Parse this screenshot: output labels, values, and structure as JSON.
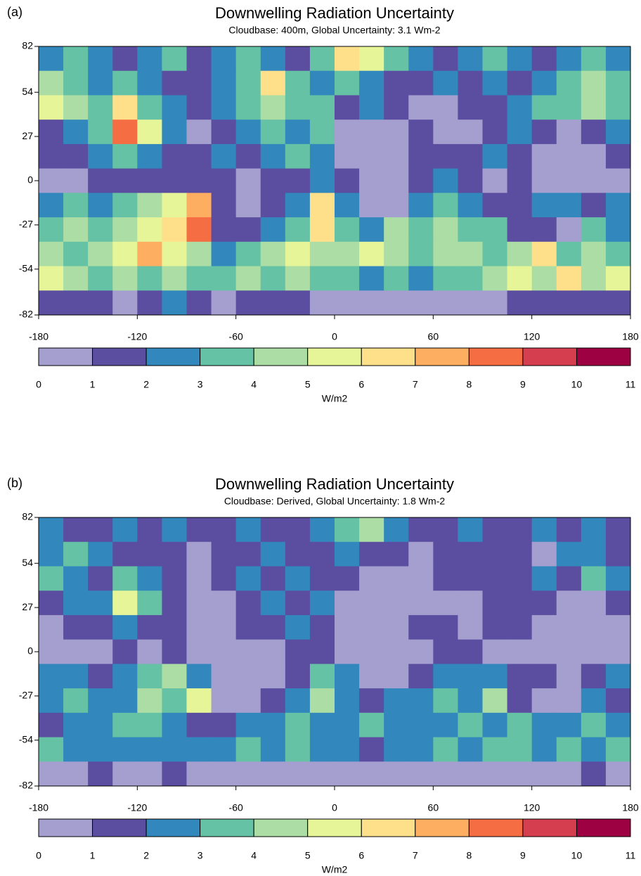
{
  "chart_data": [
    {
      "type": "heatmap",
      "panel_label": "(a)",
      "title": "Downwelling Radiation Uncertainty",
      "subtitle": "Cloudbase: 400m, Global Uncertainty: 3.1 Wm-2",
      "xlim": [
        -180,
        180
      ],
      "xticks": [
        -180,
        -120,
        -60,
        0,
        60,
        120,
        180
      ],
      "ylim": [
        -82,
        82
      ],
      "yticks": [
        82,
        54,
        27,
        0,
        -27,
        -54,
        -82
      ],
      "values": [
        [
          2.5,
          3.5,
          2.5,
          1.5,
          2.5,
          3.5,
          1.5,
          2.5,
          3.5,
          2.5,
          1.5,
          3.5,
          6.5,
          5.5,
          3.5,
          2.5,
          1.5,
          2.5,
          3.5,
          2.5,
          1.5,
          2.5,
          3.5,
          2.5
        ],
        [
          4.5,
          3.5,
          2.5,
          3.5,
          2.5,
          1.5,
          1.5,
          2.5,
          3.5,
          6.5,
          3.5,
          2.5,
          3.5,
          2.5,
          1.5,
          1.5,
          2.5,
          1.5,
          2.5,
          1.5,
          2.5,
          3.5,
          4.5,
          3.5
        ],
        [
          5.5,
          4.5,
          3.5,
          6.5,
          3.5,
          2.5,
          1.5,
          2.5,
          3.5,
          4.5,
          3.5,
          3.5,
          1.5,
          2.5,
          1.5,
          0.5,
          0.5,
          1.5,
          1.5,
          2.5,
          3.5,
          3.5,
          4.5,
          3.5
        ],
        [
          1.5,
          2.5,
          3.5,
          8.5,
          5.5,
          2.5,
          0.5,
          1.5,
          2.5,
          3.5,
          2.5,
          3.5,
          0.5,
          0.5,
          0.5,
          1.5,
          0.5,
          0.5,
          1.5,
          2.5,
          1.5,
          0.5,
          1.5,
          2.5
        ],
        [
          1.5,
          1.5,
          2.5,
          3.5,
          2.5,
          1.5,
          1.5,
          2.5,
          1.5,
          2.5,
          3.5,
          2.5,
          0.5,
          0.5,
          0.5,
          1.5,
          1.5,
          1.5,
          2.5,
          1.5,
          0.5,
          0.5,
          0.5,
          1.5
        ],
        [
          0.5,
          0.5,
          1.5,
          1.5,
          1.5,
          1.5,
          1.5,
          1.5,
          0.5,
          1.5,
          1.5,
          2.5,
          1.5,
          0.5,
          0.5,
          1.5,
          2.5,
          1.5,
          0.5,
          1.5,
          0.5,
          0.5,
          0.5,
          0.5
        ],
        [
          2.5,
          3.5,
          2.5,
          3.5,
          4.5,
          5.5,
          7.5,
          1.5,
          0.5,
          1.5,
          2.5,
          6.5,
          2.5,
          0.5,
          0.5,
          2.5,
          3.5,
          2.5,
          1.5,
          1.5,
          2.5,
          2.5,
          1.5,
          2.5
        ],
        [
          3.5,
          4.5,
          3.5,
          4.5,
          5.5,
          6.5,
          8.5,
          1.5,
          1.5,
          2.5,
          3.5,
          6.5,
          3.5,
          2.5,
          4.5,
          3.5,
          4.5,
          3.5,
          3.5,
          1.5,
          1.5,
          0.5,
          3.5,
          2.5
        ],
        [
          4.5,
          3.5,
          4.5,
          5.5,
          7.5,
          5.5,
          4.5,
          2.5,
          3.5,
          4.5,
          5.5,
          4.5,
          4.5,
          5.5,
          4.5,
          3.5,
          4.5,
          4.5,
          3.5,
          4.5,
          6.5,
          3.5,
          4.5,
          3.5
        ],
        [
          5.5,
          4.5,
          3.5,
          4.5,
          3.5,
          4.5,
          3.5,
          3.5,
          4.5,
          3.5,
          4.5,
          3.5,
          3.5,
          2.5,
          3.5,
          2.5,
          3.5,
          3.5,
          4.5,
          5.5,
          4.5,
          6.5,
          4.5,
          5.5
        ],
        [
          1.5,
          1.5,
          1.5,
          0.5,
          1.5,
          2.5,
          1.5,
          0.5,
          1.5,
          1.5,
          1.5,
          0.5,
          0.5,
          0.5,
          0.5,
          0.5,
          0.5,
          0.5,
          0.5,
          1.5,
          1.5,
          1.5,
          1.5,
          1.5
        ]
      ],
      "colorbar": {
        "levels": [
          0,
          1,
          2,
          3,
          4,
          5,
          6,
          7,
          8,
          9,
          10,
          11
        ],
        "colors": [
          "#a59fcf",
          "#5b4ea0",
          "#3288bd",
          "#66c2a5",
          "#abdda4",
          "#e6f598",
          "#fee08b",
          "#fdae61",
          "#f46d43",
          "#d53e4f",
          "#9e0142"
        ],
        "label": "W/m2"
      }
    },
    {
      "type": "heatmap",
      "panel_label": "(b)",
      "title": "Downwelling Radiation Uncertainty",
      "subtitle": "Cloudbase: Derived, Global Uncertainty: 1.8 Wm-2",
      "xlim": [
        -180,
        180
      ],
      "xticks": [
        -180,
        -120,
        -60,
        0,
        60,
        120,
        180
      ],
      "ylim": [
        -82,
        82
      ],
      "yticks": [
        82,
        54,
        27,
        0,
        -27,
        -54,
        -82
      ],
      "values": [
        [
          2.5,
          1.5,
          1.5,
          2.5,
          1.5,
          2.5,
          1.5,
          1.5,
          2.5,
          1.5,
          1.5,
          2.5,
          3.5,
          4.5,
          2.5,
          1.5,
          1.5,
          2.5,
          1.5,
          1.5,
          2.5,
          1.5,
          2.5,
          1.5
        ],
        [
          2.5,
          3.5,
          2.5,
          1.5,
          1.5,
          1.5,
          0.5,
          1.5,
          1.5,
          2.5,
          1.5,
          1.5,
          2.5,
          1.5,
          1.5,
          0.5,
          1.5,
          1.5,
          1.5,
          1.5,
          0.5,
          2.5,
          2.5,
          1.5
        ],
        [
          3.5,
          2.5,
          1.5,
          3.5,
          2.5,
          1.5,
          0.5,
          1.5,
          2.5,
          1.5,
          2.5,
          1.5,
          1.5,
          0.5,
          0.5,
          0.5,
          1.5,
          1.5,
          1.5,
          1.5,
          2.5,
          1.5,
          3.5,
          2.5
        ],
        [
          1.5,
          2.5,
          2.5,
          5.5,
          3.5,
          1.5,
          0.5,
          0.5,
          1.5,
          2.5,
          1.5,
          2.5,
          0.5,
          0.5,
          0.5,
          0.5,
          0.5,
          0.5,
          1.5,
          1.5,
          1.5,
          0.5,
          0.5,
          1.5
        ],
        [
          0.5,
          1.5,
          1.5,
          2.5,
          1.5,
          1.5,
          0.5,
          0.5,
          1.5,
          1.5,
          2.5,
          1.5,
          0.5,
          0.5,
          0.5,
          1.5,
          1.5,
          0.5,
          1.5,
          1.5,
          0.5,
          0.5,
          0.5,
          0.5
        ],
        [
          0.5,
          0.5,
          0.5,
          1.5,
          0.5,
          1.5,
          0.5,
          0.5,
          0.5,
          0.5,
          1.5,
          1.5,
          0.5,
          0.5,
          0.5,
          0.5,
          1.5,
          1.5,
          0.5,
          0.5,
          0.5,
          0.5,
          0.5,
          0.5
        ],
        [
          2.5,
          2.5,
          1.5,
          2.5,
          3.5,
          4.5,
          2.5,
          0.5,
          0.5,
          0.5,
          1.5,
          3.5,
          2.5,
          0.5,
          0.5,
          1.5,
          2.5,
          2.5,
          2.5,
          1.5,
          1.5,
          0.5,
          1.5,
          2.5
        ],
        [
          2.5,
          3.5,
          2.5,
          2.5,
          4.5,
          3.5,
          5.5,
          0.5,
          0.5,
          1.5,
          2.5,
          4.5,
          2.5,
          1.5,
          2.5,
          2.5,
          3.5,
          2.5,
          4.5,
          1.5,
          0.5,
          0.5,
          2.5,
          1.5
        ],
        [
          1.5,
          2.5,
          2.5,
          3.5,
          3.5,
          2.5,
          1.5,
          1.5,
          2.5,
          2.5,
          3.5,
          2.5,
          2.5,
          3.5,
          2.5,
          2.5,
          2.5,
          3.5,
          2.5,
          3.5,
          2.5,
          2.5,
          3.5,
          2.5
        ],
        [
          3.5,
          2.5,
          2.5,
          2.5,
          2.5,
          2.5,
          2.5,
          2.5,
          3.5,
          2.5,
          3.5,
          2.5,
          2.5,
          1.5,
          2.5,
          2.5,
          3.5,
          2.5,
          3.5,
          3.5,
          2.5,
          3.5,
          2.5,
          3.5
        ],
        [
          0.5,
          0.5,
          1.5,
          0.5,
          0.5,
          1.5,
          0.5,
          0.5,
          0.5,
          0.5,
          0.5,
          0.5,
          0.5,
          0.5,
          0.5,
          0.5,
          0.5,
          0.5,
          0.5,
          0.5,
          0.5,
          0.5,
          1.5,
          0.5
        ]
      ],
      "colorbar": {
        "levels": [
          0,
          1,
          2,
          3,
          4,
          5,
          6,
          7,
          8,
          9,
          10,
          11
        ],
        "colors": [
          "#a59fcf",
          "#5b4ea0",
          "#3288bd",
          "#66c2a5",
          "#abdda4",
          "#e6f598",
          "#fee08b",
          "#fdae61",
          "#f46d43",
          "#d53e4f",
          "#9e0142"
        ],
        "label": "W/m2"
      }
    }
  ]
}
